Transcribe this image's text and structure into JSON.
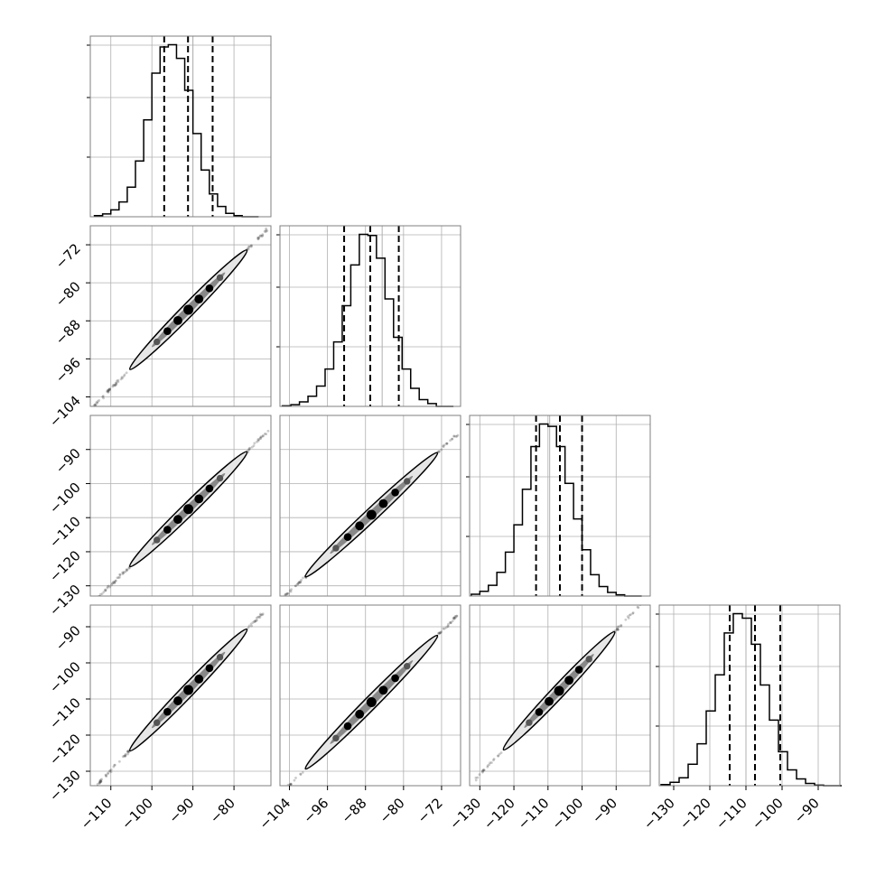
{
  "chart_data": {
    "type": "corner",
    "title": "",
    "grid": true,
    "colors": {
      "line": "#000000",
      "frame": "#7f7f7f",
      "grid": "#b0b0b0",
      "points": "#333333"
    },
    "parameters": [
      {
        "range": [
          -115,
          -71
        ],
        "ticks": [
          -110,
          -100,
          -90,
          -80
        ],
        "tick_labels": [
          "−110",
          "−100",
          "−90",
          "−80"
        ],
        "quantiles": [
          -97.0,
          -91.2,
          -85.2
        ],
        "truth": -90.0
      },
      {
        "range": [
          -106,
          -68
        ],
        "ticks": [
          -104,
          -96,
          -88,
          -80,
          -72
        ],
        "tick_labels": [
          "−104",
          "−96",
          "−88",
          "−80",
          "−72"
        ],
        "quantiles": [
          -92.5,
          -87.0,
          -81.0
        ],
        "truth": -84.5
      },
      {
        "range": [
          -133,
          -80
        ],
        "ticks": [
          -130,
          -120,
          -110,
          -100,
          -90
        ],
        "tick_labels": [
          "−130",
          "−120",
          "−110",
          "−100",
          "−90"
        ],
        "quantiles": [
          -113.5,
          -106.5,
          -100.0
        ],
        "truth": -109.5
      },
      {
        "range": [
          -134,
          -84
        ],
        "ticks": [
          -130,
          -120,
          -110,
          -100,
          -90
        ],
        "tick_labels": [
          "−130",
          "−120",
          "−110",
          "−100",
          "−90"
        ],
        "quantiles": [
          -114.5,
          -107.5,
          -100.5
        ],
        "truth": -110.0
      }
    ],
    "histograms": [
      {
        "param": 0,
        "bin_start": -114,
        "bin_width": 2,
        "counts": [
          10,
          25,
          60,
          130,
          260,
          490,
          850,
          1260,
          1490,
          1510,
          1390,
          1110,
          730,
          410,
          200,
          90,
          30,
          10,
          0,
          0
        ]
      },
      {
        "param": 1,
        "bin_start": -105.5,
        "bin_width": 1.8,
        "counts": [
          5,
          15,
          40,
          90,
          180,
          330,
          570,
          890,
          1250,
          1520,
          1510,
          1310,
          950,
          610,
          330,
          160,
          60,
          25,
          0,
          0
        ]
      },
      {
        "param": 2,
        "bin_start": -132.5,
        "bin_width": 2.5,
        "counts": [
          15,
          40,
          90,
          200,
          370,
          600,
          900,
          1260,
          1450,
          1430,
          1260,
          950,
          650,
          390,
          180,
          80,
          30,
          10,
          0,
          0
        ]
      },
      {
        "param": 3,
        "bin_start": -133.5,
        "bin_width": 2.5,
        "counts": [
          10,
          30,
          70,
          190,
          370,
          660,
          980,
          1350,
          1520,
          1480,
          1250,
          890,
          580,
          300,
          140,
          60,
          20,
          5,
          0,
          0
        ]
      }
    ],
    "pairs": [
      {
        "x": 0,
        "y": 1,
        "slope": 0.88,
        "intercept": -5.5
      },
      {
        "x": 0,
        "y": 2,
        "slope": 1.18,
        "intercept": 0.0
      },
      {
        "x": 1,
        "y": 2,
        "slope": 1.31,
        "intercept": 4.5
      },
      {
        "x": 0,
        "y": 3,
        "slope": 1.18,
        "intercept": 0.0
      },
      {
        "x": 1,
        "y": 3,
        "slope": 1.33,
        "intercept": 4.5
      },
      {
        "x": 2,
        "y": 3,
        "slope": 1.0,
        "intercept": -1.0
      }
    ]
  }
}
